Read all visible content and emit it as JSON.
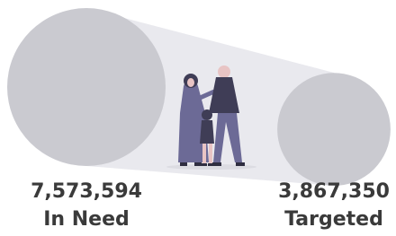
{
  "chart_data": {
    "type": "bubble",
    "categories": [
      "In Need",
      "Targeted"
    ],
    "values": [
      7573594,
      3867350
    ],
    "value_labels": [
      "7,573,594",
      "3,867,350"
    ],
    "color": "#cacad0"
  }
}
